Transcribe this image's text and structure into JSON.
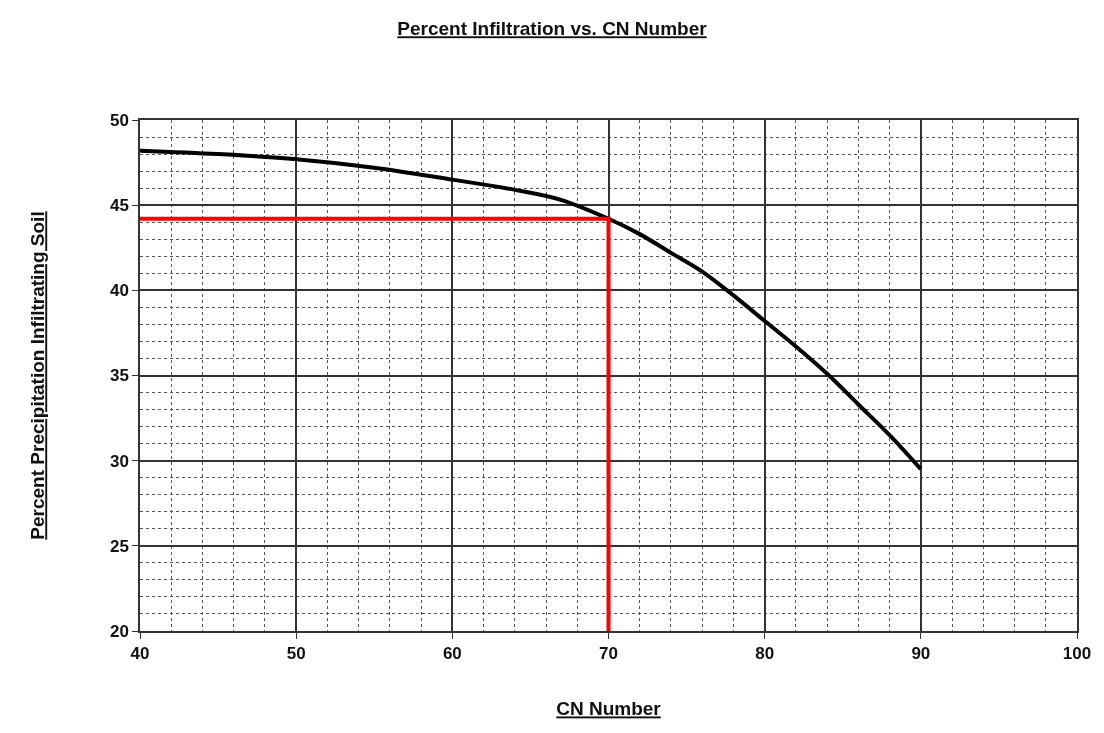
{
  "chart_data": {
    "type": "line",
    "title": "Percent Infiltration vs. CN Number",
    "xlabel": "CN Number",
    "ylabel": "Percent Precipitation Infiltrating Soil",
    "series": [
      {
        "color": "#000000",
        "x": [
          40,
          45,
          50,
          55,
          60,
          64,
          67,
          70,
          72,
          74,
          76,
          78,
          80,
          82,
          84,
          86,
          88,
          90
        ],
        "values": [
          48.2,
          48.0,
          47.7,
          47.2,
          46.5,
          45.9,
          45.3,
          44.2,
          43.3,
          42.2,
          41.1,
          39.7,
          38.2,
          36.7,
          35.1,
          33.3,
          31.5,
          29.5
        ]
      },
      {
        "color": "#ff0000",
        "x": [
          40,
          70,
          70
        ],
        "values": [
          44.2,
          44.2,
          20
        ]
      }
    ],
    "xlim": [
      40,
      100
    ],
    "xticks": [
      40,
      50,
      60,
      70,
      80,
      90,
      100
    ],
    "ylim": [
      20,
      50
    ],
    "yticks": [
      20,
      25,
      30,
      35,
      40,
      45,
      50
    ],
    "grid": true,
    "marker": "none",
    "line_style": "solid"
  }
}
